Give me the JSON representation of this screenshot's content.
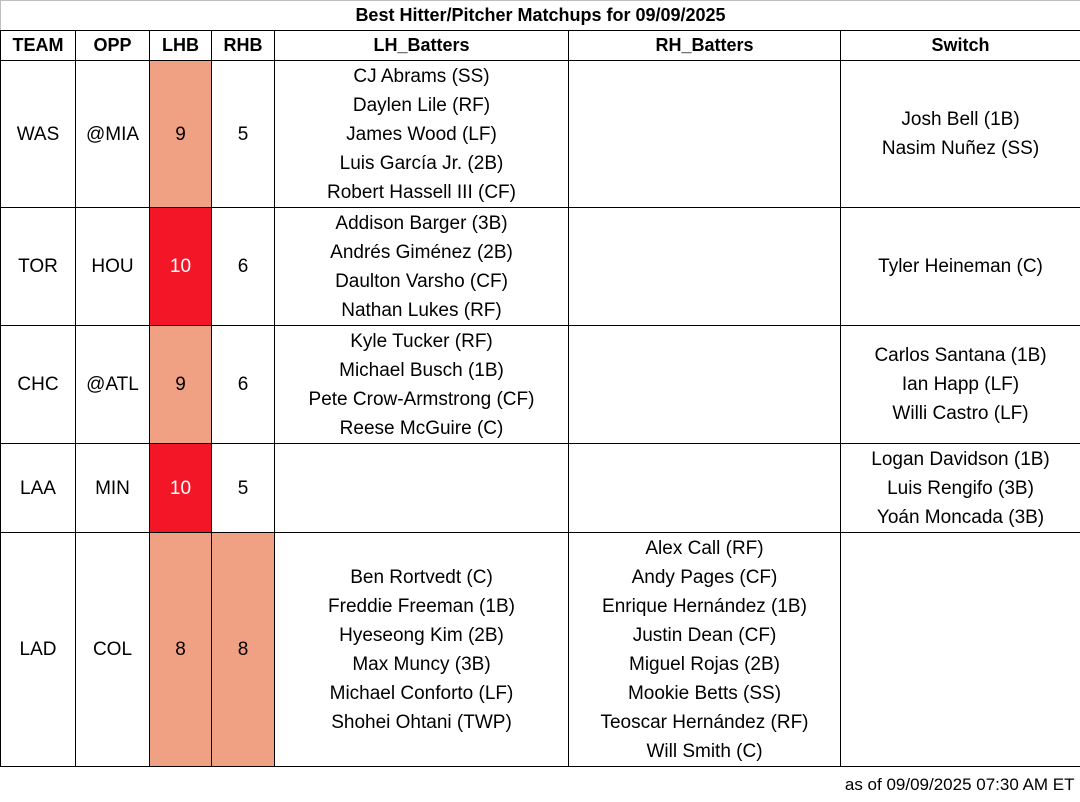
{
  "title": "Best Hitter/Pitcher Matchups for 09/09/2025",
  "headers": [
    "TEAM",
    "OPP",
    "LHB",
    "RHB",
    "LH_Batters",
    "RH_Batters",
    "Switch"
  ],
  "colors": {
    "moderate": "#f1a183",
    "strong": "#f21626",
    "text_on_strong": "#ffffff"
  },
  "rows": [
    {
      "team": "WAS",
      "opp": "@MIA",
      "lhb": "9",
      "lhb_level": "moderate",
      "rhb": "5",
      "rhb_level": "none",
      "lh_batters": [
        "CJ Abrams (SS)",
        "Daylen Lile (RF)",
        "James Wood (LF)",
        "Luis García Jr. (2B)",
        "Robert Hassell III (CF)"
      ],
      "rh_batters": [],
      "switch": [
        "Josh Bell (1B)",
        "Nasim Nuñez (SS)"
      ]
    },
    {
      "team": "TOR",
      "opp": "HOU",
      "lhb": "10",
      "lhb_level": "strong",
      "rhb": "6",
      "rhb_level": "none",
      "lh_batters": [
        "Addison Barger (3B)",
        "Andrés Giménez (2B)",
        "Daulton Varsho (CF)",
        "Nathan Lukes (RF)"
      ],
      "rh_batters": [],
      "switch": [
        "Tyler Heineman (C)"
      ]
    },
    {
      "team": "CHC",
      "opp": "@ATL",
      "lhb": "9",
      "lhb_level": "moderate",
      "rhb": "6",
      "rhb_level": "none",
      "lh_batters": [
        "Kyle Tucker (RF)",
        "Michael Busch (1B)",
        "Pete Crow-Armstrong (CF)",
        "Reese McGuire (C)"
      ],
      "rh_batters": [],
      "switch": [
        "Carlos Santana (1B)",
        "Ian Happ (LF)",
        "Willi Castro (LF)"
      ]
    },
    {
      "team": "LAA",
      "opp": "MIN",
      "lhb": "10",
      "lhb_level": "strong",
      "rhb": "5",
      "rhb_level": "none",
      "lh_batters": [],
      "rh_batters": [],
      "switch": [
        "Logan Davidson (1B)",
        "Luis Rengifo (3B)",
        "Yoán Moncada (3B)"
      ]
    },
    {
      "team": "LAD",
      "opp": "COL",
      "lhb": "8",
      "lhb_level": "moderate",
      "rhb": "8",
      "rhb_level": "moderate",
      "lh_batters": [
        "Ben Rortvedt (C)",
        "Freddie Freeman (1B)",
        "Hyeseong Kim (2B)",
        "Max Muncy (3B)",
        "Michael Conforto (LF)",
        "Shohei Ohtani (TWP)"
      ],
      "rh_batters": [
        "Alex Call (RF)",
        "Andy Pages (CF)",
        "Enrique Hernández (1B)",
        "Justin Dean (CF)",
        "Miguel Rojas (2B)",
        "Mookie Betts (SS)",
        "Teoscar Hernández (RF)",
        "Will Smith (C)"
      ],
      "switch": []
    }
  ],
  "footer": "as of 09/09/2025 07:30 AM ET"
}
